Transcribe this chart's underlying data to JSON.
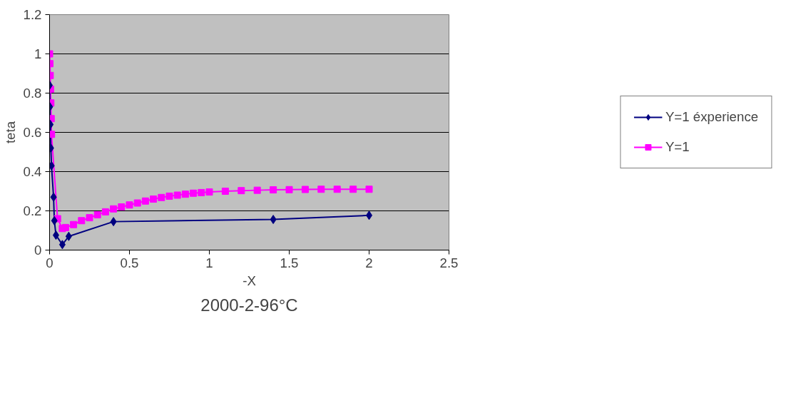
{
  "chart_data": {
    "type": "line",
    "xlabel": "-X",
    "ylabel": "teta",
    "xlim": [
      0,
      2.5
    ],
    "xticks": [
      0,
      0.5,
      1,
      1.5,
      2,
      2.5
    ],
    "ylim": [
      0,
      1.2
    ],
    "yticks": [
      0,
      0.2,
      0.4,
      0.6,
      0.8,
      1,
      1.2
    ],
    "grid": "y",
    "legend": "right",
    "annotations": [
      "2000-2-96°C"
    ],
    "series": [
      {
        "name": "Y=1 éxperience",
        "color": "#000080",
        "marker": "diamond",
        "x": [
          0,
          0.002,
          0.005,
          0.008,
          0.012,
          0.025,
          0.03,
          0.04,
          0.08,
          0.12,
          0.4,
          1.4,
          2.0
        ],
        "values": [
          0.84,
          0.73,
          0.64,
          0.52,
          0.43,
          0.27,
          0.15,
          0.076,
          0.028,
          0.07,
          0.145,
          0.156,
          0.177
        ]
      },
      {
        "name": "Y=1",
        "color": "#ff00ff",
        "marker": "square",
        "x": [
          0,
          0.002,
          0.004,
          0.006,
          0.008,
          0.01,
          0.012,
          0.05,
          0.08,
          0.1,
          0.15,
          0.2,
          0.25,
          0.3,
          0.35,
          0.4,
          0.45,
          0.5,
          0.55,
          0.6,
          0.65,
          0.7,
          0.75,
          0.8,
          0.85,
          0.9,
          0.95,
          1.0,
          1.1,
          1.2,
          1.3,
          1.4,
          1.5,
          1.6,
          1.7,
          1.8,
          1.9,
          2.0
        ],
        "values": [
          1.0,
          0.95,
          0.89,
          0.82,
          0.75,
          0.67,
          0.59,
          0.16,
          0.11,
          0.115,
          0.13,
          0.15,
          0.165,
          0.18,
          0.195,
          0.21,
          0.22,
          0.23,
          0.24,
          0.25,
          0.26,
          0.268,
          0.275,
          0.28,
          0.285,
          0.29,
          0.293,
          0.296,
          0.3,
          0.303,
          0.305,
          0.307,
          0.308,
          0.309,
          0.31,
          0.31,
          0.31,
          0.31
        ]
      }
    ]
  }
}
